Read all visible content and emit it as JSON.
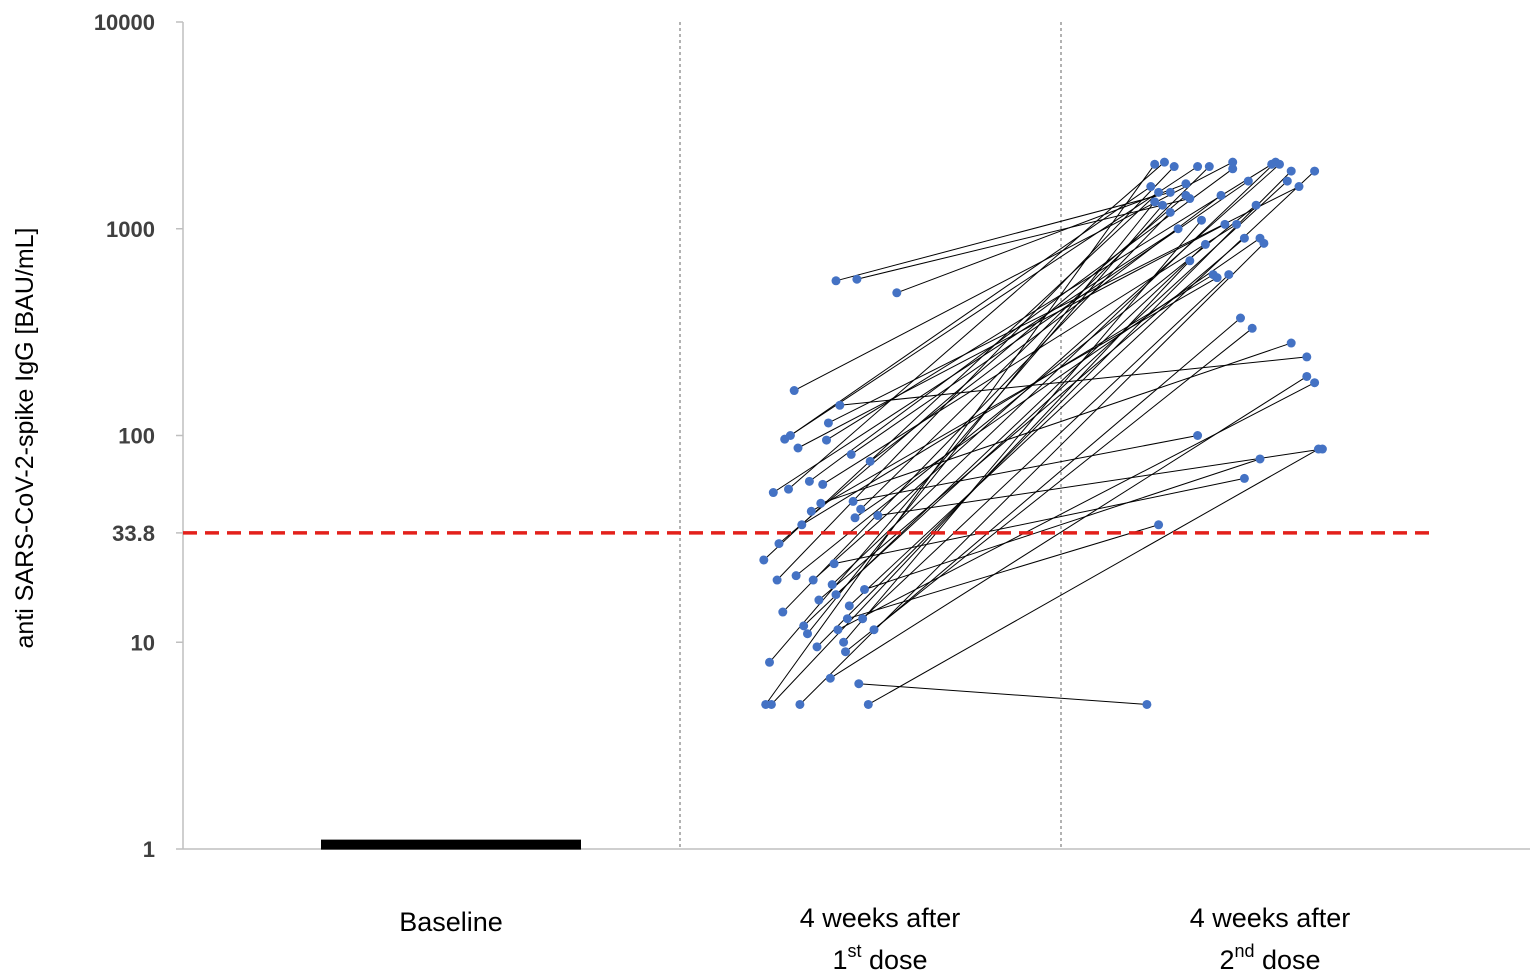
{
  "chart_data": {
    "type": "scatter",
    "title": "",
    "ylabel": "anti SARS-CoV-2-spike IgG [BAU/mL]",
    "yscale": "log",
    "ylim": [
      1,
      10000
    ],
    "yticks": [
      {
        "value": 10000,
        "label": "10000"
      },
      {
        "value": 1000,
        "label": "1000"
      },
      {
        "value": 100,
        "label": "100"
      },
      {
        "value": 33.8,
        "label": "33.8"
      },
      {
        "value": 10,
        "label": "10"
      },
      {
        "value": 1,
        "label": "1"
      }
    ],
    "categories": [
      {
        "lines": [
          {
            "text": "Baseline",
            "sup": "",
            "tail": ""
          }
        ]
      },
      {
        "lines": [
          {
            "text": "4 weeks after",
            "sup": "",
            "tail": ""
          },
          {
            "text": "1",
            "sup": "st",
            "tail": " dose"
          }
        ]
      },
      {
        "lines": [
          {
            "text": "4 weeks after",
            "sup": "",
            "tail": ""
          },
          {
            "text": "2",
            "sup": "nd",
            "tail": " dose"
          }
        ]
      }
    ],
    "baseline": {
      "value": 1.05,
      "category": 0
    },
    "threshold": {
      "value": 33.8,
      "color": "#e3201b",
      "style": "dashed"
    },
    "point_color": "#4472c4",
    "line_color": "#000000",
    "pairs": [
      [
        0.03,
        5.0,
        0.06,
        2050
      ],
      [
        0.05,
        8.0,
        0.1,
        1300
      ],
      [
        0.02,
        25,
        0.08,
        1500
      ],
      [
        0.07,
        53,
        0.18,
        1000
      ],
      [
        0.09,
        20,
        0.16,
        2000
      ],
      [
        0.1,
        30,
        0.22,
        1450
      ],
      [
        0.12,
        14,
        0.14,
        1200
      ],
      [
        0.06,
        5.0,
        0.24,
        700
      ],
      [
        0.13,
        96,
        0.28,
        2000
      ],
      [
        0.15,
        55,
        0.11,
        2100
      ],
      [
        0.18,
        165,
        0.46,
        2100
      ],
      [
        0.16,
        100,
        0.04,
        1600
      ],
      [
        0.2,
        87,
        0.42,
        1050
      ],
      [
        0.19,
        21,
        0.58,
        1300
      ],
      [
        0.21,
        5.0,
        0.62,
        850
      ],
      [
        0.23,
        12,
        0.32,
        840
      ],
      [
        0.25,
        11,
        0.06,
        1350
      ],
      [
        0.28,
        20,
        0.7,
        2050
      ],
      [
        0.3,
        9.5,
        0.76,
        1900
      ],
      [
        0.27,
        43,
        0.38,
        580
      ],
      [
        0.31,
        16,
        0.52,
        900
      ],
      [
        0.33,
        58,
        0.48,
        1050
      ],
      [
        0.35,
        95,
        0.66,
        2050
      ],
      [
        0.36,
        115,
        0.8,
        1600
      ],
      [
        0.38,
        19,
        0.68,
        2100
      ],
      [
        0.4,
        17,
        0.74,
        1700
      ],
      [
        0.42,
        140,
        0.84,
        240
      ],
      [
        0.44,
        10,
        0.3,
        1100
      ],
      [
        0.47,
        15,
        0.88,
        1900
      ],
      [
        0.48,
        81,
        0.54,
        1700
      ],
      [
        0.5,
        40,
        0.6,
        900
      ],
      [
        0.54,
        13,
        0.44,
        600
      ],
      [
        0.52,
        6.3,
        0.02,
        5.0
      ],
      [
        0.58,
        75,
        0.4,
        1450
      ],
      [
        0.6,
        11.5,
        0.5,
        370
      ],
      [
        0.45,
        9.0,
        0.56,
        330
      ],
      [
        0.37,
        6.7,
        0.84,
        193
      ],
      [
        0.41,
        11.5,
        0.88,
        180
      ],
      [
        0.57,
        5.0,
        0.9,
        86
      ],
      [
        0.62,
        41,
        0.92,
        86
      ],
      [
        0.55,
        18,
        0.6,
        77
      ],
      [
        0.22,
        37,
        0.36,
        600
      ],
      [
        0.26,
        60,
        0.46,
        1950
      ],
      [
        0.39,
        24,
        0.52,
        62
      ],
      [
        0.46,
        13,
        0.08,
        37
      ],
      [
        0.49,
        48,
        0.28,
        100
      ],
      [
        0.53,
        44,
        0.34,
        2000
      ],
      [
        0.51,
        570,
        0.24,
        1400
      ],
      [
        0.72,
        490,
        0.22,
        1650
      ],
      [
        0.4,
        560,
        0.14,
        1500
      ],
      [
        0.32,
        47,
        0.76,
        280
      ]
    ]
  }
}
